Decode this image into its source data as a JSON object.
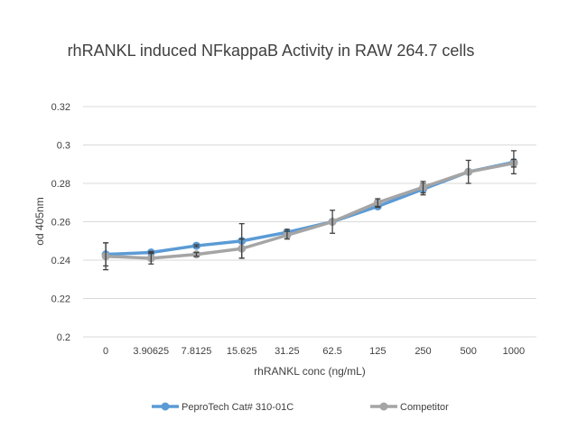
{
  "chart_data": {
    "type": "line",
    "title": "rhRANKL induced NFkappaB Activity in RAW 264.7 cells",
    "xlabel": "rhRANKL conc (ng/mL)",
    "ylabel": "od 405nm",
    "categories": [
      "0",
      "3.90625",
      "7.8125",
      "15.625",
      "31.25",
      "62.5",
      "125",
      "250",
      "500",
      "1000"
    ],
    "ylim": [
      0.2,
      0.32
    ],
    "yticks": [
      "0.2",
      "0.22",
      "0.24",
      "0.26",
      "0.28",
      "0.3",
      "0.32"
    ],
    "grid": true,
    "legend": "bottom",
    "series": [
      {
        "name": "PeproTech Cat# 310-01C",
        "color": "#5b9bd5",
        "values": [
          0.243,
          0.244,
          0.2475,
          0.25,
          0.2545,
          0.26,
          0.268,
          0.277,
          0.286,
          0.291
        ],
        "errors": [
          0.006,
          0.0005,
          0.0005,
          0.009,
          0.0015,
          0.0005,
          0.0005,
          0.003,
          0.0005,
          0.006
        ]
      },
      {
        "name": "Competitor",
        "color": "#a5a5a5",
        "values": [
          0.242,
          0.241,
          0.243,
          0.246,
          0.253,
          0.26,
          0.27,
          0.278,
          0.286,
          0.2905
        ],
        "errors": [
          0.007,
          0.003,
          0.001,
          0.005,
          0.002,
          0.006,
          0.002,
          0.003,
          0.006,
          0.002
        ]
      }
    ]
  }
}
